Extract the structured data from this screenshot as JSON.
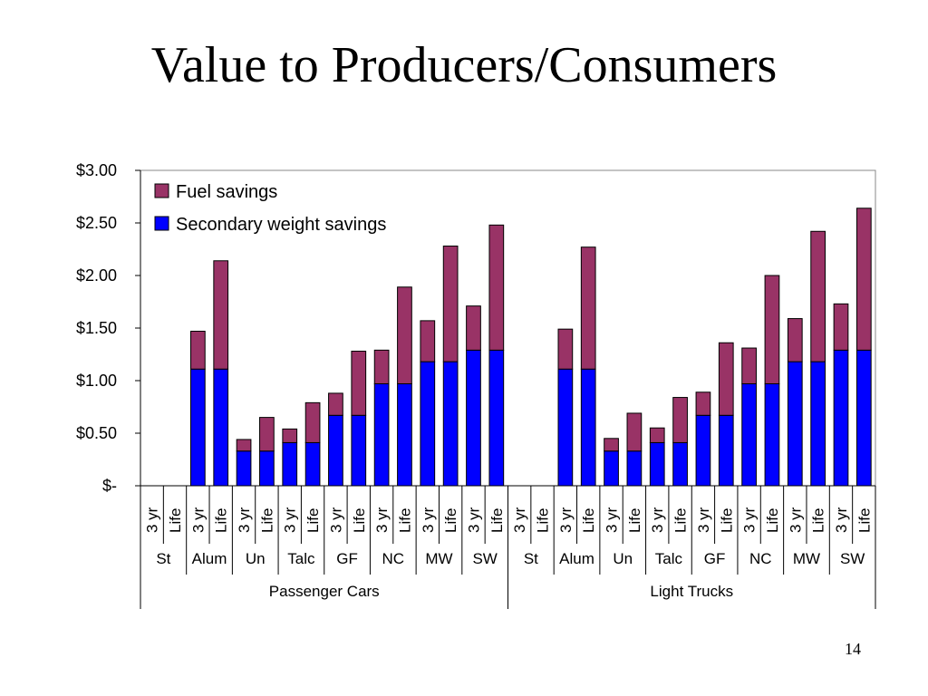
{
  "slide": {
    "title": "Value to Producers/Consumers",
    "page_number": "14"
  },
  "colors": {
    "fuel_savings": "#993366",
    "secondary_weight_savings": "#0000FF",
    "outline": "#000000"
  },
  "chart_data": {
    "type": "bar",
    "stacked": true,
    "yticks": [
      "$3.00",
      "$2.50",
      "$2.00",
      "$1.50",
      "$1.00",
      "$0.50",
      "$-"
    ],
    "ylim": [
      0,
      3
    ],
    "ystep": 0.5,
    "legend": {
      "placement": "top-left",
      "entries": [
        "Fuel savings",
        "Secondary weight savings"
      ]
    },
    "groups": [
      {
        "name": "Passenger Cars",
        "materials": [
          "St",
          "Alum",
          "Un",
          "Talc",
          "GF",
          "NC",
          "MW",
          "SW"
        ]
      },
      {
        "name": "Light Trucks",
        "materials": [
          "St",
          "Alum",
          "Un",
          "Talc",
          "GF",
          "NC",
          "MW",
          "SW"
        ]
      }
    ],
    "periods": [
      "3 yr",
      "Life"
    ],
    "series": [
      {
        "name": "Secondary weight savings",
        "values": [
          0,
          0,
          1.11,
          1.11,
          0.33,
          0.33,
          0.41,
          0.41,
          0.67,
          0.67,
          0.97,
          0.97,
          1.18,
          1.18,
          1.29,
          1.29,
          0,
          0,
          1.11,
          1.11,
          0.33,
          0.33,
          0.41,
          0.41,
          0.67,
          0.67,
          0.97,
          0.97,
          1.18,
          1.18,
          1.29,
          1.29
        ]
      },
      {
        "name": "Fuel savings",
        "values": [
          0,
          0,
          0.36,
          1.03,
          0.11,
          0.32,
          0.13,
          0.38,
          0.21,
          0.61,
          0.32,
          0.92,
          0.39,
          1.1,
          0.42,
          1.19,
          0,
          0,
          0.38,
          1.16,
          0.12,
          0.36,
          0.14,
          0.43,
          0.22,
          0.69,
          0.34,
          1.03,
          0.41,
          1.24,
          0.44,
          1.35
        ]
      }
    ]
  }
}
